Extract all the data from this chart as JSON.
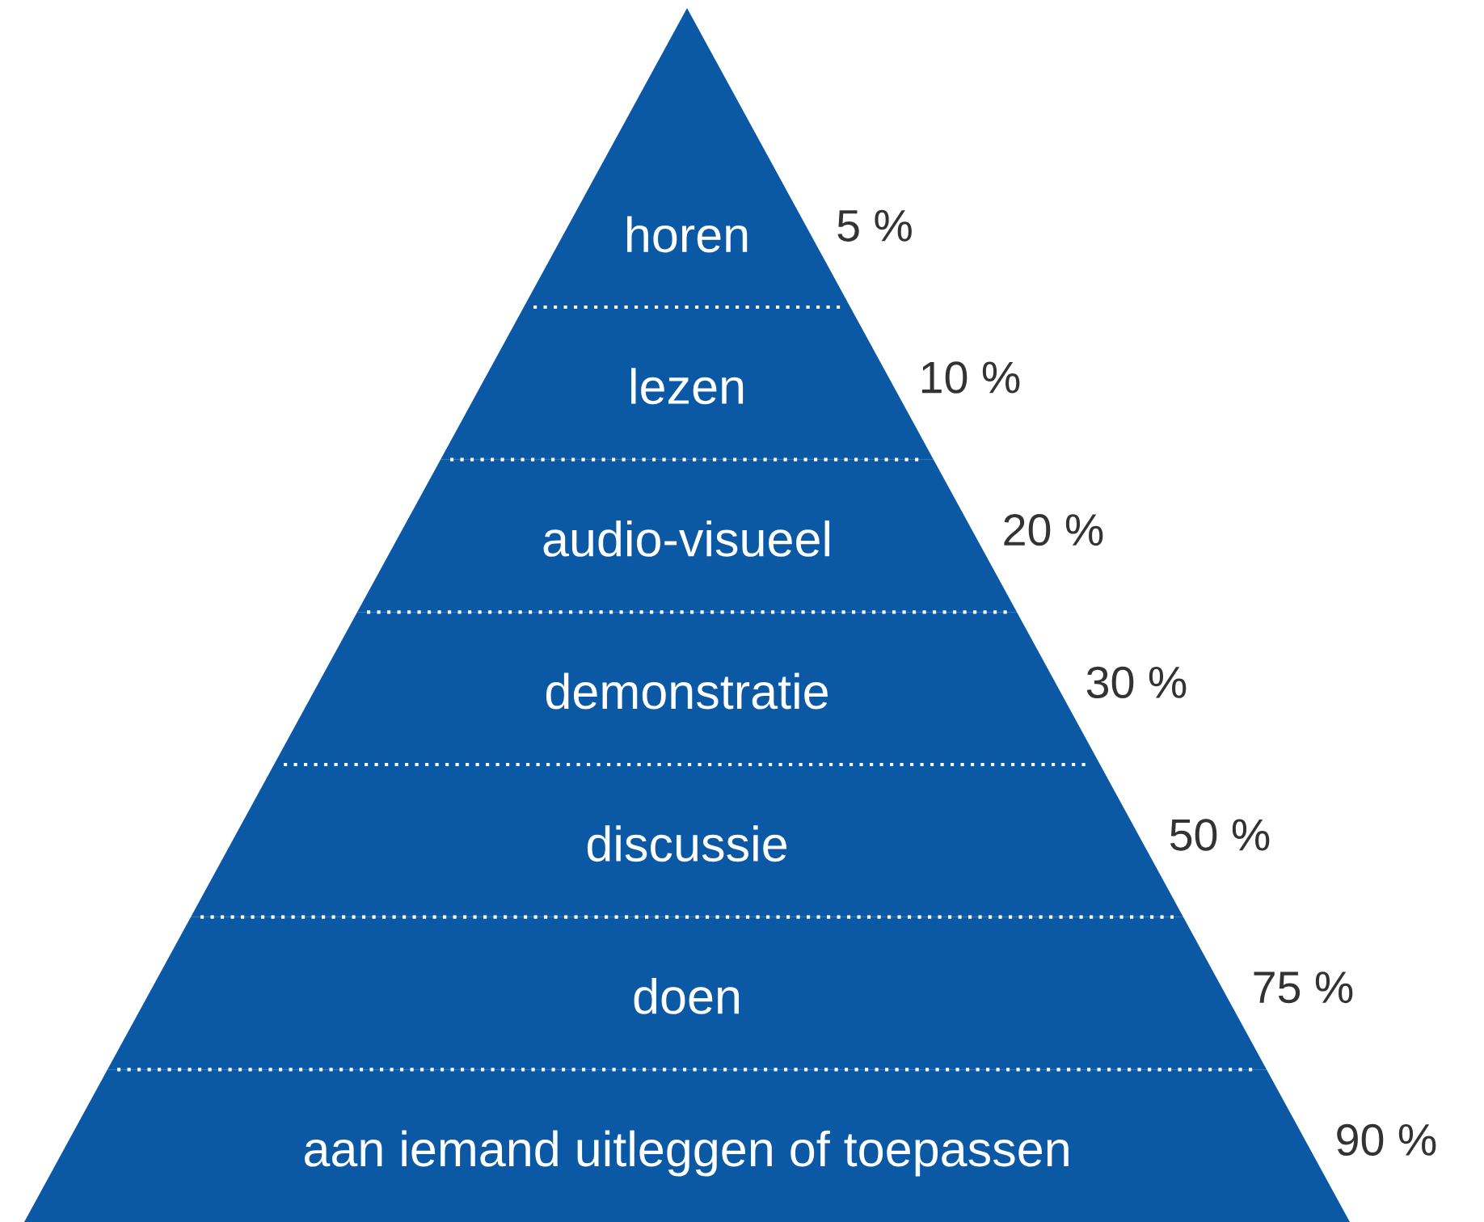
{
  "chart_data": {
    "type": "other",
    "categories": [
      "horen",
      "lezen",
      "audio-visueel",
      "demonstratie",
      "discussie",
      "doen",
      "aan iemand uitleggen of toepassen"
    ],
    "values": [
      5,
      10,
      20,
      30,
      50,
      75,
      90
    ],
    "value_labels": [
      "5 %",
      "10 %",
      "20 %",
      "30 %",
      "50 %",
      "75 %",
      "90 %"
    ],
    "color": "#0b59a5"
  }
}
